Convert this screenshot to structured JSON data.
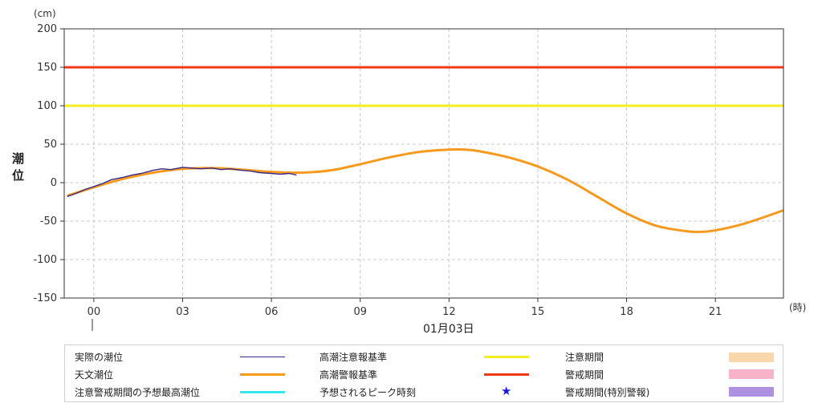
{
  "chart_data": {
    "type": "line",
    "y_unit": "(cm)",
    "x_unit": "(時)",
    "ylabel": "潮位",
    "ylabel_chars": [
      "潮",
      "位"
    ],
    "date_label": "01月03日",
    "ylim": [
      -150,
      200
    ],
    "y_ticks": [
      -150,
      -100,
      -50,
      0,
      50,
      100,
      150,
      200
    ],
    "y_tick_labels": [
      "-150",
      "-100",
      "-50",
      "0",
      "50",
      "100",
      "150",
      "200"
    ],
    "xlim": [
      -1,
      23.3
    ],
    "x_ticks": [
      0,
      3,
      6,
      9,
      12,
      15,
      18,
      21
    ],
    "x_tick_labels": [
      "00",
      "03",
      "06",
      "09",
      "12",
      "15",
      "18",
      "21"
    ],
    "grid": true,
    "series": [
      {
        "name": "天文潮位",
        "color": "#f59a1f",
        "x": [
          -0.9,
          0,
          1,
          2,
          3,
          4,
          5,
          6,
          7,
          8,
          9,
          10,
          11,
          12,
          12.5,
          13,
          14,
          15,
          16,
          17,
          18,
          19,
          20,
          20.5,
          21,
          22,
          23.3
        ],
        "values": [
          -17,
          -6,
          5,
          13,
          18,
          19,
          17,
          14,
          13,
          16,
          24,
          33,
          40,
          43,
          43,
          41,
          33,
          21,
          4,
          -18,
          -40,
          -56,
          -63,
          -64,
          -62,
          -53,
          -36
        ]
      },
      {
        "name": "実際の潮位",
        "color": "#3a2a8c",
        "x": [
          -0.9,
          -0.6,
          -0.3,
          0,
          0.3,
          0.6,
          1,
          1.3,
          1.6,
          2,
          2.3,
          2.6,
          3,
          3.3,
          3.6,
          4,
          4.3,
          4.6,
          5,
          5.3,
          5.6,
          6,
          6.3,
          6.6,
          6.85
        ],
        "values": [
          -18,
          -14,
          -9,
          -5,
          -1,
          4,
          7,
          10,
          12,
          16,
          18,
          17,
          20,
          19,
          18,
          19,
          17,
          18,
          16,
          15,
          13,
          12,
          11,
          12,
          10
        ]
      },
      {
        "name": "高潮注意報基準",
        "color": "#f5ee22",
        "values": [
          100
        ]
      },
      {
        "name": "高潮警報基準",
        "color": "#ef3a14",
        "values": [
          150
        ]
      }
    ]
  },
  "legend": {
    "items": [
      {
        "label": "実際の潮位",
        "color": "#3a2a8c",
        "kind": "thin-line"
      },
      {
        "label": "天文潮位",
        "color": "#f59a1f",
        "kind": "line"
      },
      {
        "label": "注意警戒期間の予想最高潮位",
        "color": "#33e6f0",
        "kind": "line"
      },
      {
        "label": "高潮注意報基準",
        "color": "#f5ee22",
        "kind": "line"
      },
      {
        "label": "高潮警報基準",
        "color": "#ef3a14",
        "kind": "line"
      },
      {
        "label": "予想されるピーク時刻",
        "color": "#1a1ad8",
        "kind": "star",
        "symbol": "★"
      },
      {
        "label": "注意期間",
        "color": "#f9d7ad",
        "kind": "box"
      },
      {
        "label": "警戒期間",
        "color": "#f9b3c8",
        "kind": "box"
      },
      {
        "label": "警戒期間(特別警報)",
        "color": "#ad91e0",
        "kind": "box"
      }
    ]
  }
}
